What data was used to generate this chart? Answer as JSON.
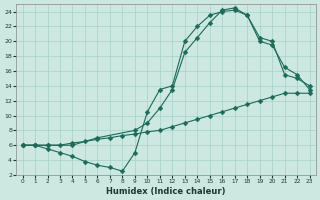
{
  "xlabel": "Humidex (Indice chaleur)",
  "bg_color": "#cce8e0",
  "grid_color": "#a8d0c8",
  "line_color": "#1a6b5a",
  "xlim": [
    -0.5,
    23.5
  ],
  "ylim": [
    2,
    25
  ],
  "xticks": [
    0,
    1,
    2,
    3,
    4,
    5,
    6,
    7,
    8,
    9,
    10,
    11,
    12,
    13,
    14,
    15,
    16,
    17,
    18,
    19,
    20,
    21,
    22,
    23
  ],
  "yticks": [
    2,
    4,
    6,
    8,
    10,
    12,
    14,
    16,
    18,
    20,
    22,
    24
  ],
  "curve1_x": [
    0,
    1,
    2,
    3,
    4,
    5,
    6,
    7,
    8,
    9,
    10,
    11,
    12,
    13,
    14,
    15,
    16,
    17,
    18,
    19,
    20,
    21,
    22,
    23
  ],
  "curve1_y": [
    6,
    6,
    6,
    6,
    6.3,
    6.5,
    6.8,
    7.0,
    7.3,
    7.5,
    7.8,
    8.0,
    8.5,
    9.0,
    9.5,
    10.0,
    10.5,
    11.0,
    11.5,
    12.0,
    12.5,
    13.0,
    13.0,
    13.0
  ],
  "curve2_x": [
    0,
    1,
    2,
    3,
    4,
    5,
    6,
    7,
    8,
    9,
    10,
    11,
    12,
    13,
    14,
    15,
    16,
    17,
    18,
    19,
    20,
    21,
    22,
    23
  ],
  "curve2_y": [
    6,
    6,
    5.5,
    5.0,
    4.5,
    3.8,
    3.3,
    3.0,
    2.5,
    5.0,
    10.5,
    13.5,
    14.0,
    20.0,
    22.0,
    23.5,
    24.0,
    24.2,
    23.5,
    20.0,
    19.5,
    16.5,
    15.5,
    13.5
  ],
  "curve3_x": [
    0,
    1,
    2,
    4,
    6,
    9,
    10,
    11,
    12,
    13,
    14,
    15,
    16,
    17,
    18,
    19,
    20,
    21,
    22,
    23
  ],
  "curve3_y": [
    6,
    6,
    6,
    6,
    7.0,
    8.0,
    9.0,
    11.0,
    13.5,
    18.5,
    20.5,
    22.5,
    24.2,
    24.5,
    23.5,
    20.5,
    20.0,
    15.5,
    15.0,
    14.0
  ]
}
